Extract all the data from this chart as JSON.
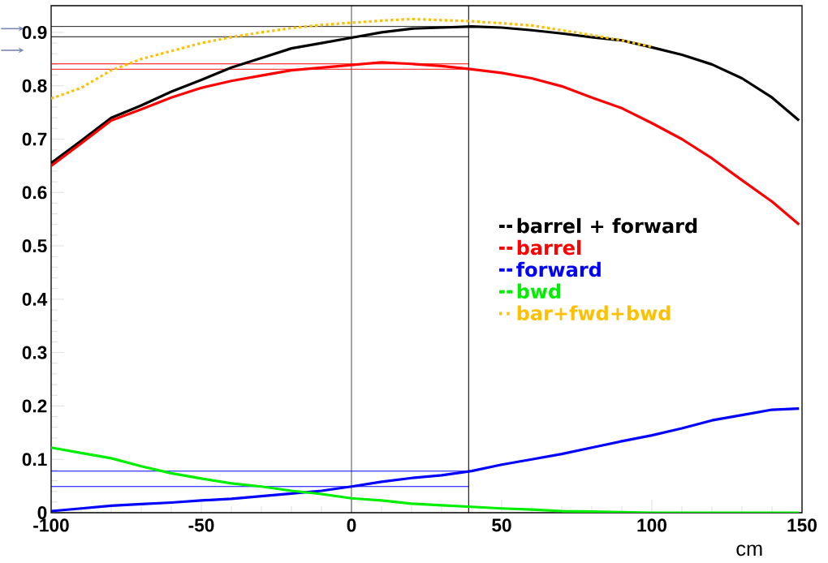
{
  "chart_data": {
    "type": "line",
    "xlabel": "cm",
    "xlim": [
      -100,
      150
    ],
    "ylim": [
      0,
      0.95
    ],
    "xticks": [
      -100,
      -50,
      0,
      50,
      100,
      150
    ],
    "yticks": [
      0,
      0.1,
      0.2,
      0.3,
      0.4,
      0.5,
      0.6,
      0.7,
      0.8,
      0.9
    ],
    "grid": false,
    "legend": "right",
    "marker": "none",
    "series": [
      {
        "name": "barrel + forward",
        "color": "#000000",
        "x": [
          -100,
          -90,
          -80,
          -70,
          -60,
          -50,
          -40,
          -30,
          -20,
          -10,
          0,
          10,
          20,
          30,
          40,
          50,
          60,
          70,
          80,
          90,
          100,
          110,
          120,
          130,
          140,
          149
        ],
        "values": [
          0.655,
          0.697,
          0.74,
          0.763,
          0.789,
          0.811,
          0.834,
          0.852,
          0.87,
          0.88,
          0.89,
          0.9,
          0.907,
          0.909,
          0.911,
          0.909,
          0.904,
          0.898,
          0.891,
          0.885,
          0.872,
          0.858,
          0.84,
          0.814,
          0.778,
          0.735
        ]
      },
      {
        "name": "barrel",
        "color": "#ff0000",
        "x": [
          -100,
          -90,
          -80,
          -70,
          -60,
          -50,
          -40,
          -30,
          -20,
          -10,
          0,
          10,
          20,
          30,
          40,
          50,
          60,
          70,
          80,
          90,
          100,
          110,
          120,
          130,
          140,
          149
        ],
        "values": [
          0.65,
          0.692,
          0.735,
          0.756,
          0.778,
          0.796,
          0.809,
          0.819,
          0.829,
          0.834,
          0.839,
          0.844,
          0.841,
          0.837,
          0.831,
          0.824,
          0.814,
          0.799,
          0.778,
          0.758,
          0.73,
          0.7,
          0.664,
          0.623,
          0.583,
          0.54
        ]
      },
      {
        "name": "forward",
        "color": "#0000ff",
        "x": [
          -100,
          -90,
          -80,
          -70,
          -60,
          -50,
          -40,
          -30,
          -20,
          -10,
          0,
          10,
          20,
          30,
          40,
          50,
          60,
          70,
          80,
          90,
          100,
          110,
          120,
          130,
          140,
          149
        ],
        "values": [
          0.003,
          0.008,
          0.013,
          0.016,
          0.019,
          0.023,
          0.026,
          0.031,
          0.036,
          0.041,
          0.049,
          0.058,
          0.065,
          0.07,
          0.078,
          0.09,
          0.1,
          0.11,
          0.122,
          0.134,
          0.145,
          0.158,
          0.173,
          0.183,
          0.193,
          0.195
        ]
      },
      {
        "name": "bwd",
        "color": "#00ee00",
        "x": [
          -100,
          -90,
          -80,
          -70,
          -60,
          -50,
          -40,
          -30,
          -20,
          -10,
          0,
          10,
          20,
          30,
          40,
          50,
          60,
          70,
          80,
          90,
          100,
          110,
          120,
          130,
          140,
          149
        ],
        "values": [
          0.122,
          0.112,
          0.102,
          0.087,
          0.074,
          0.064,
          0.055,
          0.049,
          0.041,
          0.035,
          0.027,
          0.023,
          0.017,
          0.014,
          0.011,
          0.008,
          0.006,
          0.003,
          0.002,
          0.001,
          0,
          0,
          0,
          0,
          0,
          0
        ]
      },
      {
        "name": "bar+fwd+bwd",
        "color": "#ffc000",
        "line_style": "dotted",
        "x": [
          -100,
          -90,
          -80,
          -70,
          -60,
          -50,
          -40,
          -30,
          -20,
          -10,
          0,
          10,
          20,
          30,
          40,
          50,
          60,
          70,
          80,
          90,
          100
        ],
        "values": [
          0.776,
          0.796,
          0.829,
          0.85,
          0.865,
          0.88,
          0.891,
          0.9,
          0.908,
          0.914,
          0.918,
          0.922,
          0.925,
          0.923,
          0.921,
          0.917,
          0.913,
          0.904,
          0.895,
          0.885,
          0.873
        ]
      }
    ],
    "ref_lines": [
      {
        "axis": "x",
        "value": 0,
        "color": "#000000"
      },
      {
        "axis": "x",
        "value": 39,
        "color": "#000000"
      },
      {
        "axis": "y",
        "value": 0.911,
        "color": "#000000"
      },
      {
        "axis": "y",
        "value": 0.892,
        "color": "#000000"
      },
      {
        "axis": "y",
        "value": 0.841,
        "color": "#ff0000"
      },
      {
        "axis": "y",
        "value": 0.831,
        "color": "#ff0000"
      },
      {
        "axis": "y",
        "value": 0.078,
        "color": "#0000ff"
      },
      {
        "axis": "y",
        "value": 0.049,
        "color": "#0000ff"
      }
    ]
  }
}
